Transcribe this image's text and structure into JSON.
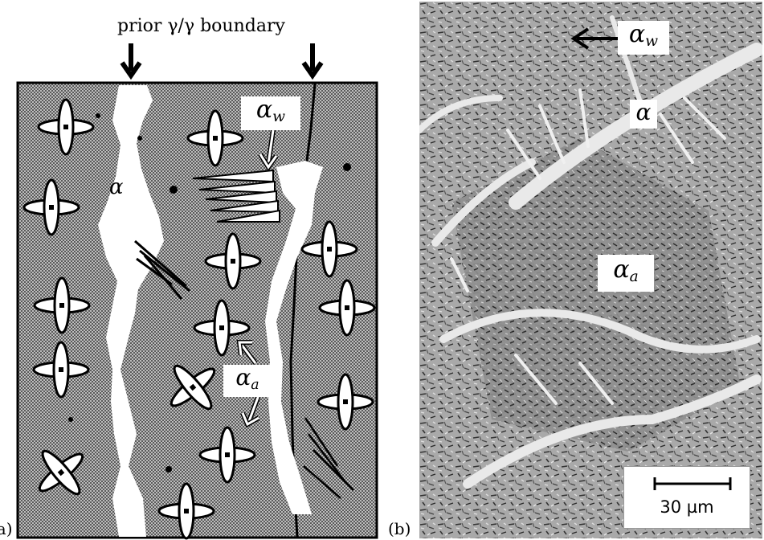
{
  "figure": {
    "panel_a": {
      "tag": "(a)",
      "boundary_label": "prior γ/γ boundary",
      "labels": {
        "alpha": {
          "symbol": "α",
          "sub": ""
        },
        "alpha_w": {
          "symbol": "α",
          "sub": "w"
        },
        "alpha_a": {
          "symbol": "α",
          "sub": "a"
        }
      }
    },
    "panel_b": {
      "tag": "(b)",
      "labels": {
        "alpha_w": {
          "symbol": "α",
          "sub": "w"
        },
        "alpha": {
          "symbol": "α",
          "sub": ""
        },
        "alpha_a": {
          "symbol": "α",
          "sub": "a"
        }
      },
      "scale_bar": "30 µm"
    }
  }
}
